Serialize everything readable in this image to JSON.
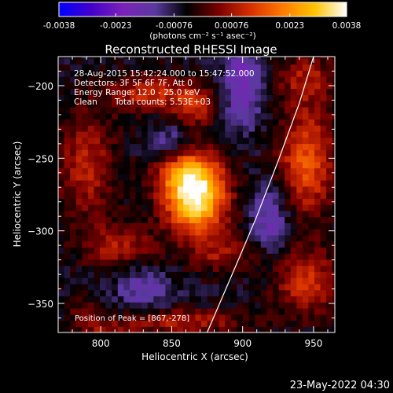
{
  "chart_data": {
    "type": "heatmap",
    "title": "Reconstructed RHESSI Image",
    "xlabel": "Heliocentric X (arcsec)",
    "ylabel": "Heliocentric Y (arcsec)",
    "xlim": [
      770,
      965
    ],
    "ylim": [
      -370,
      -180
    ],
    "xticks": [
      800,
      850,
      900,
      950
    ],
    "yticks": [
      -200,
      -250,
      -300,
      -350
    ],
    "colorbar": {
      "min": -0.0038,
      "max": 0.0038,
      "ticks": [
        "-0.0038",
        "-0.0023",
        "-0.00076",
        "0.00076",
        "0.0023",
        "0.0038"
      ],
      "unit_label": "(photons cm⁻² s⁻¹ asec⁻²)",
      "colors": [
        "#0000ff",
        "#4400cc",
        "#7a22b8",
        "#5a3aa0",
        "#000000",
        "#7a0000",
        "#d83000",
        "#ff7a00",
        "#ffc400",
        "#ffffff"
      ]
    },
    "info": {
      "line1": "28-Aug-2015 15:42:24.000 to 15:47:52.000",
      "line2": "Detectors: 3F 5F 6F 7F, Att 0",
      "line3": "Energy Range: 12.0 - 25.0 keV",
      "line4a": "Clean",
      "line4b": "Total counts: 5.53E+03"
    },
    "peak_label": "Position of Peak = [867,-278]",
    "peak": [
      867,
      -278
    ],
    "sources": [
      {
        "x": 867,
        "y": -278,
        "intensity": 0.0038,
        "sx": 15,
        "sy": 17
      },
      {
        "x": 860,
        "y": -258,
        "intensity": 0.0019,
        "sx": 16,
        "sy": 14
      },
      {
        "x": 835,
        "y": -205,
        "intensity": 0.0016,
        "sx": 22,
        "sy": 9
      },
      {
        "x": 866,
        "y": -215,
        "intensity": 0.0013,
        "sx": 10,
        "sy": 10
      },
      {
        "x": 790,
        "y": -255,
        "intensity": 0.0014,
        "sx": 14,
        "sy": 26
      },
      {
        "x": 812,
        "y": -310,
        "intensity": 0.0013,
        "sx": 18,
        "sy": 10
      },
      {
        "x": 885,
        "y": -315,
        "intensity": 0.0011,
        "sx": 16,
        "sy": 9
      },
      {
        "x": 945,
        "y": -252,
        "intensity": 0.0021,
        "sx": 14,
        "sy": 26
      },
      {
        "x": 945,
        "y": -335,
        "intensity": 0.0016,
        "sx": 16,
        "sy": 16
      },
      {
        "x": 945,
        "y": -195,
        "intensity": 0.0012,
        "sx": 14,
        "sy": 12
      },
      {
        "x": 858,
        "y": -362,
        "intensity": 0.0014,
        "sx": 30,
        "sy": 6
      },
      {
        "x": 808,
        "y": -370,
        "intensity": 0.0009,
        "sx": 12,
        "sy": 6
      },
      {
        "x": 790,
        "y": -360,
        "intensity": 0.0007,
        "sx": 10,
        "sy": 10
      },
      {
        "x": 900,
        "y": -200,
        "intensity": -0.0014,
        "sx": 10,
        "sy": 20
      },
      {
        "x": 850,
        "y": -240,
        "intensity": -0.0012,
        "sx": 12,
        "sy": 10
      },
      {
        "x": 920,
        "y": -290,
        "intensity": -0.0012,
        "sx": 10,
        "sy": 16
      },
      {
        "x": 830,
        "y": -340,
        "intensity": -0.001,
        "sx": 14,
        "sy": 10
      }
    ],
    "background": -0.0005,
    "limb_curve": [
      [
        875,
        -370
      ],
      [
        897,
        -320
      ],
      [
        910,
        -290
      ],
      [
        925,
        -252
      ],
      [
        940,
        -212
      ],
      [
        950,
        -180
      ]
    ]
  },
  "footer_date": "23-May-2022 04:30"
}
